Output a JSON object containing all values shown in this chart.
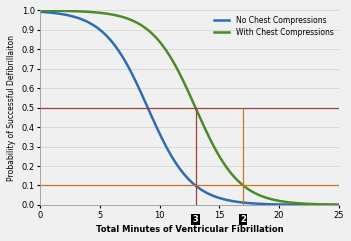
{
  "title": "",
  "xlabel": "Total Minutes of Ventricular Fibrillation",
  "ylabel": "Probability of Successful Defibrillaiton",
  "xlim": [
    0,
    25
  ],
  "ylim": [
    0.0,
    1.0
  ],
  "xticks": [
    0,
    5,
    10,
    15,
    20,
    25
  ],
  "yticks": [
    0.0,
    0.1,
    0.2,
    0.3,
    0.4,
    0.5,
    0.6,
    0.7,
    0.8,
    0.9,
    1.0
  ],
  "blue_label": "No Chest Compressions",
  "green_label": "With Chest Compressions",
  "blue_color": "#2e6db4",
  "green_color": "#4a8c2a",
  "hline_50": 0.5,
  "hline_10": 0.1,
  "hline_color": "#a04040",
  "hline_color_orange": "#c87820",
  "vline_red_x": 13.0,
  "vline_orange_x": 17.0,
  "blue_k": 0.55,
  "blue_t0": 9.0,
  "green_k": 0.55,
  "green_t0": 13.0,
  "background_color": "#f0f0f0",
  "grid_color": "#d0d0d0",
  "legend_fontsize": 5.5,
  "label_fontsize": 6.0,
  "tick_fontsize": 6.0,
  "ylabel_fontsize": 5.5,
  "linewidth": 1.8,
  "hline_linewidth": 0.9,
  "vline_linewidth": 0.9
}
